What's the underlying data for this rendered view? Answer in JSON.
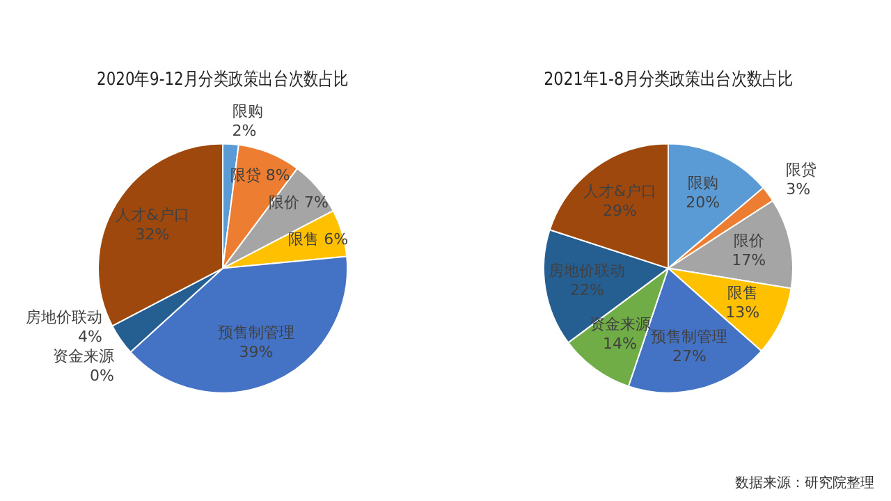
{
  "chart_data": [
    {
      "type": "pie",
      "title": "2020年9-12月分类政策出台次数占比",
      "categories": [
        "限购",
        "限贷",
        "限价",
        "限售",
        "预售制管理",
        "资金来源",
        "房地价联动",
        "人才&户口"
      ],
      "values": [
        2,
        8,
        7,
        6,
        39,
        0,
        4,
        32
      ],
      "colors": [
        "#5b9bd5",
        "#ed7d31",
        "#a5a5a5",
        "#ffc000",
        "#4472c4",
        "#70ad47",
        "#255e91",
        "#9e480e"
      ],
      "value_labels": [
        "2%",
        "8%",
        "7%",
        "6%",
        "39%",
        "0%",
        "4%",
        "32%"
      ],
      "legend": false
    },
    {
      "type": "pie",
      "title": "2021年1-8月分类政策出台次数占比",
      "categories": [
        "限购",
        "限贷",
        "限价",
        "限售",
        "预售制管理",
        "资金来源",
        "房地价联动",
        "人才&户口"
      ],
      "values": [
        20,
        3,
        17,
        13,
        27,
        14,
        22,
        29
      ],
      "colors": [
        "#5b9bd5",
        "#ed7d31",
        "#a5a5a5",
        "#ffc000",
        "#4472c4",
        "#70ad47",
        "#255e91",
        "#9e480e"
      ],
      "value_labels": [
        "20%",
        "3%",
        "17%",
        "13%",
        "27%",
        "14%",
        "22%",
        "29%"
      ],
      "legend": false,
      "annotations": [
        "数据来源：研究院整理"
      ]
    }
  ]
}
